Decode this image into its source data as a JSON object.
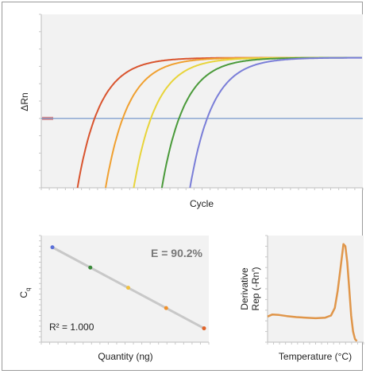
{
  "chart_data": [
    {
      "type": "line",
      "title": "",
      "xlabel": "Cycle",
      "ylabel": "ΔRn",
      "xlim": [
        0,
        40
      ],
      "ylim": [
        0,
        10
      ],
      "threshold": {
        "label": "threshold",
        "value": 4,
        "color": "#6a8fc8"
      },
      "plateau": 7.5,
      "series": [
        {
          "onset_cycle": 4.5,
          "color": "#d9542e"
        },
        {
          "onset_cycle": 8.0,
          "color": "#f0a030"
        },
        {
          "onset_cycle": 11.5,
          "color": "#e8d43a"
        },
        {
          "onset_cycle": 15.0,
          "color": "#4a9a3a"
        },
        {
          "onset_cycle": 18.5,
          "color": "#7a7ed8"
        }
      ]
    },
    {
      "type": "scatter",
      "xlabel": "Quantity (ng)",
      "ylabel": "C",
      "ylabel_sub": "q",
      "annotation": "E = 90.2%",
      "r2_label": "R² = 1.000",
      "x": [
        1,
        2,
        3,
        4,
        5
      ],
      "y": [
        8.9,
        7.0,
        5.1,
        3.2,
        1.3
      ],
      "colors": [
        "#5a6fd8",
        "#3a8a3a",
        "#f0c040",
        "#f0902a",
        "#e0642a"
      ],
      "fit_color": "#c8c8c8"
    },
    {
      "type": "line",
      "xlabel": "Temperature (°C)",
      "ylabel_line1": "Derivative",
      "ylabel_line2": "Rep (-Rn′)",
      "color": "#e0964a",
      "points": [
        [
          0,
          2.4
        ],
        [
          0.05,
          2.6
        ],
        [
          0.12,
          2.55
        ],
        [
          0.2,
          2.45
        ],
        [
          0.3,
          2.35
        ],
        [
          0.4,
          2.3
        ],
        [
          0.5,
          2.25
        ],
        [
          0.6,
          2.3
        ],
        [
          0.66,
          2.5
        ],
        [
          0.7,
          3.2
        ],
        [
          0.73,
          4.8
        ],
        [
          0.76,
          7.0
        ],
        [
          0.79,
          9.2
        ],
        [
          0.81,
          9.0
        ],
        [
          0.83,
          7.5
        ],
        [
          0.85,
          5.0
        ],
        [
          0.87,
          2.5
        ],
        [
          0.89,
          1.0
        ],
        [
          0.91,
          0.3
        ],
        [
          0.93,
          0.1
        ]
      ]
    }
  ]
}
